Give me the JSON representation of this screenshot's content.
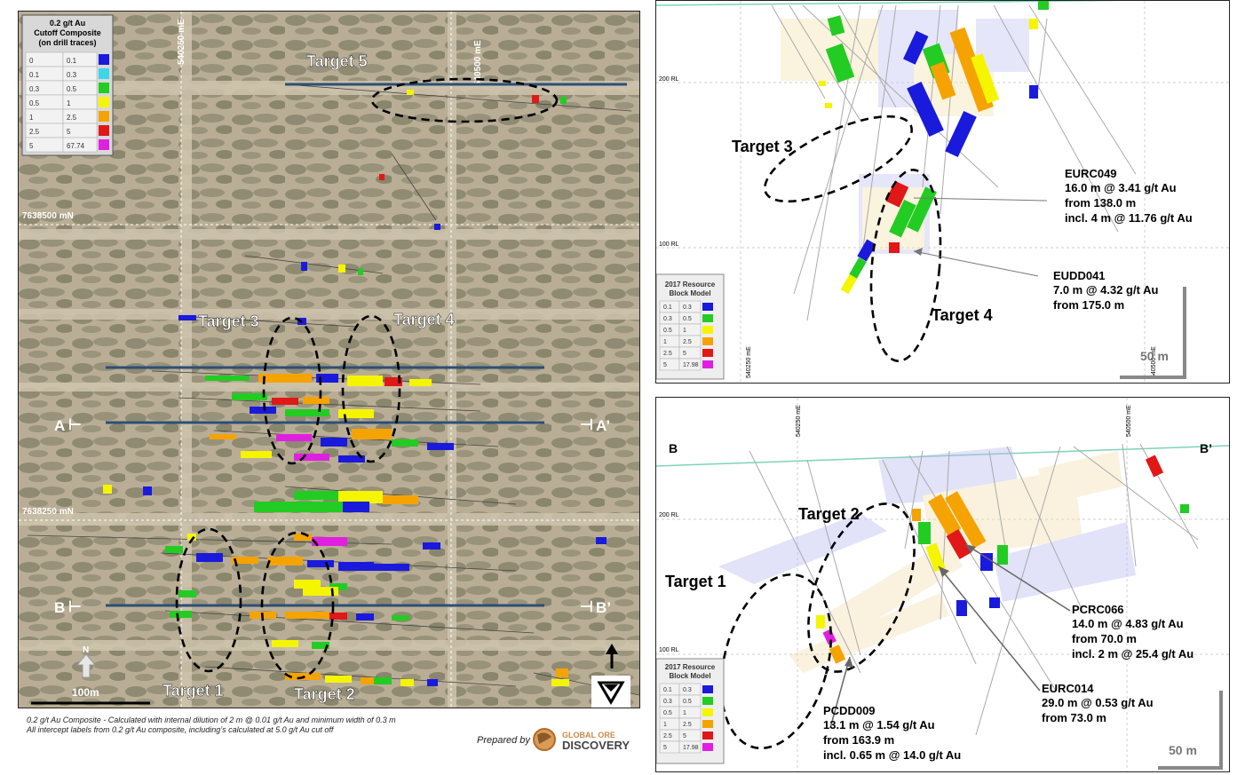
{
  "plan": {
    "legend": {
      "title1": "0.2 g/t Au",
      "title2": "Cutoff Composite",
      "title3": "(on drill traces)",
      "rows": [
        {
          "from": "0",
          "to": "0.1",
          "color": "#1a1adc"
        },
        {
          "from": "0.1",
          "to": "0.3",
          "color": "#3cd6ea"
        },
        {
          "from": "0.3",
          "to": "0.5",
          "color": "#22cc22"
        },
        {
          "from": "0.5",
          "to": "1",
          "color": "#f5f500"
        },
        {
          "from": "1",
          "to": "2.5",
          "color": "#f5a300"
        },
        {
          "from": "2.5",
          "to": "5",
          "color": "#e01818"
        },
        {
          "from": "5",
          "to": "67.74",
          "color": "#e020e0"
        }
      ]
    },
    "grid_e1": "540250 mE",
    "grid_e2": "540500 mE",
    "grid_n1": "7638500 mN",
    "grid_n2": "7638250 mN",
    "targets": [
      "Target 5",
      "Target 3",
      "Target 4",
      "Target 1",
      "Target 2"
    ],
    "sec_a_left": "A",
    "sec_a_right": "A’",
    "sec_b_left": "B",
    "sec_b_right": "B’",
    "north": "N",
    "scale": "100m"
  },
  "footnotes": {
    "line1": "0.2 g/t Au Composite - Calculated with internal dilution of 2 m @ 0.01 g/t Au and minimum width of 0.3 m",
    "line2": "All intercept labels from 0.2 g/t Au composite, including’s calculated at 5.0 g/t Au cut off",
    "prepared": "Prepared by",
    "logo1": "GLOBAL ORE",
    "logo2": "DISCOVERY"
  },
  "section_a": {
    "rl_200": "200 RL",
    "rl_100": "100 RL",
    "target3": "Target 3",
    "target4": "Target 4",
    "legend_title1": "2017 Resource",
    "legend_title2": "Block Model",
    "legend_rows": [
      {
        "from": "0.1",
        "to": "0.3",
        "color": "#1a1adc"
      },
      {
        "from": "0.3",
        "to": "0.5",
        "color": "#22cc22"
      },
      {
        "from": "0.5",
        "to": "1",
        "color": "#f5f500"
      },
      {
        "from": "1",
        "to": "2.5",
        "color": "#f5a300"
      },
      {
        "from": "2.5",
        "to": "5",
        "color": "#e01818"
      },
      {
        "from": "5",
        "to": "17.98",
        "color": "#e020e0"
      }
    ],
    "hole1_name": "EURC049",
    "hole1_l1": "16.0 m @ 3.41 g/t Au",
    "hole1_l2": "from 138.0 m",
    "hole1_l3": "incl. 4 m @ 11.76 g/t Au",
    "hole2_name": "EUDD041",
    "hole2_l1": "7.0 m @ 4.32 g/t Au",
    "hole2_l2": "from 175.0 m",
    "e1": "540250 mE",
    "e2": "540500 mE",
    "scale": "50 m"
  },
  "section_b": {
    "left": "B",
    "right": "B’",
    "e1": "540250 mE",
    "e2": "540500 mE",
    "rl_200": "200 RL",
    "rl_100": "100 RL",
    "target1": "Target 1",
    "target2": "Target 2",
    "legend_title1": "2017 Resource",
    "legend_title2": "Block Model",
    "hole1_name": "PCRC066",
    "hole1_l1": "14.0 m @ 4.83 g/t Au",
    "hole1_l2": "from 70.0 m",
    "hole1_l3": "incl. 2 m @ 25.4 g/t Au",
    "hole2_name": "EURC014",
    "hole2_l1": "29.0 m @ 0.53 g/t Au",
    "hole2_l2": "from 73.0 m",
    "hole3_name": "PCDD009",
    "hole3_l1": "13.1 m @ 1.54 g/t Au",
    "hole3_l2": "from 163.9 m",
    "hole3_l3": "incl. 0.65 m @ 14.0 g/t Au",
    "scale": "50 m"
  }
}
